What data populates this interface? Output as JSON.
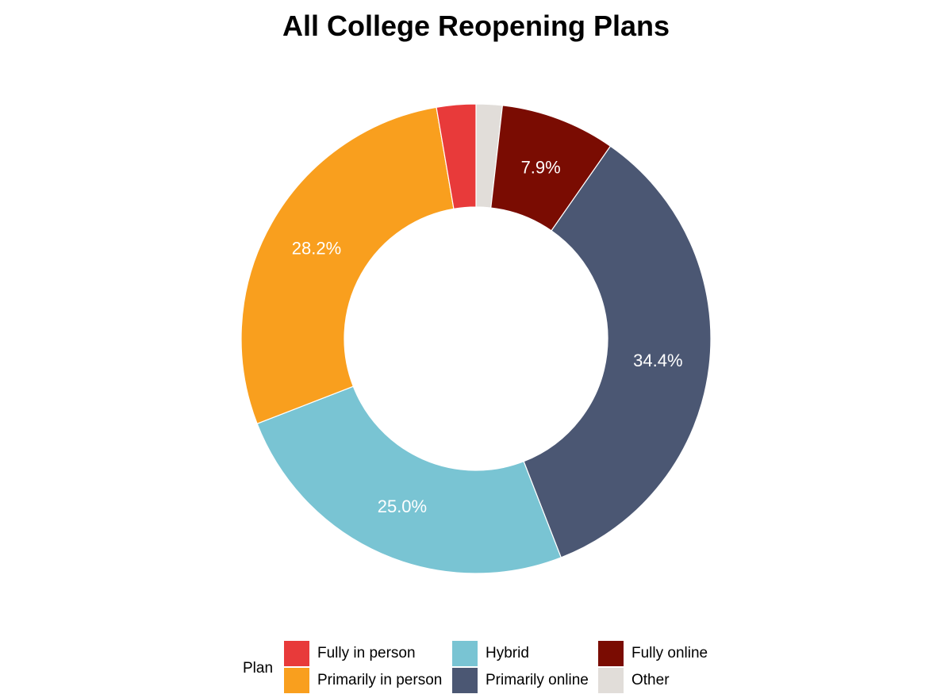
{
  "chart_data": {
    "type": "pie",
    "title": "All College Reopening Plans",
    "donut": true,
    "slices": [
      {
        "name": "Other",
        "value": 1.8,
        "label": "",
        "color": "#e1ddd9"
      },
      {
        "name": "Fully online",
        "value": 7.9,
        "label": "7.9%",
        "color": "#7a0c02"
      },
      {
        "name": "Primarily online",
        "value": 34.4,
        "label": "34.4%",
        "color": "#4b5773"
      },
      {
        "name": "Hybrid",
        "value": 25.0,
        "label": "25.0%",
        "color": "#79c4d3"
      },
      {
        "name": "Primarily in person",
        "value": 28.2,
        "label": "28.2%",
        "color": "#f99f1e"
      },
      {
        "name": "Fully in person",
        "value": 2.7,
        "label": "",
        "color": "#e83a3a"
      }
    ],
    "legend": {
      "title": "Plan",
      "position": "bottom",
      "items": [
        {
          "label": "Fully in person",
          "color": "#e83a3a"
        },
        {
          "label": "Primarily in person",
          "color": "#f99f1e"
        },
        {
          "label": "Hybrid",
          "color": "#79c4d3"
        },
        {
          "label": "Primarily online",
          "color": "#4b5773"
        },
        {
          "label": "Fully online",
          "color": "#7a0c02"
        },
        {
          "label": "Other",
          "color": "#e1ddd9"
        }
      ]
    }
  }
}
